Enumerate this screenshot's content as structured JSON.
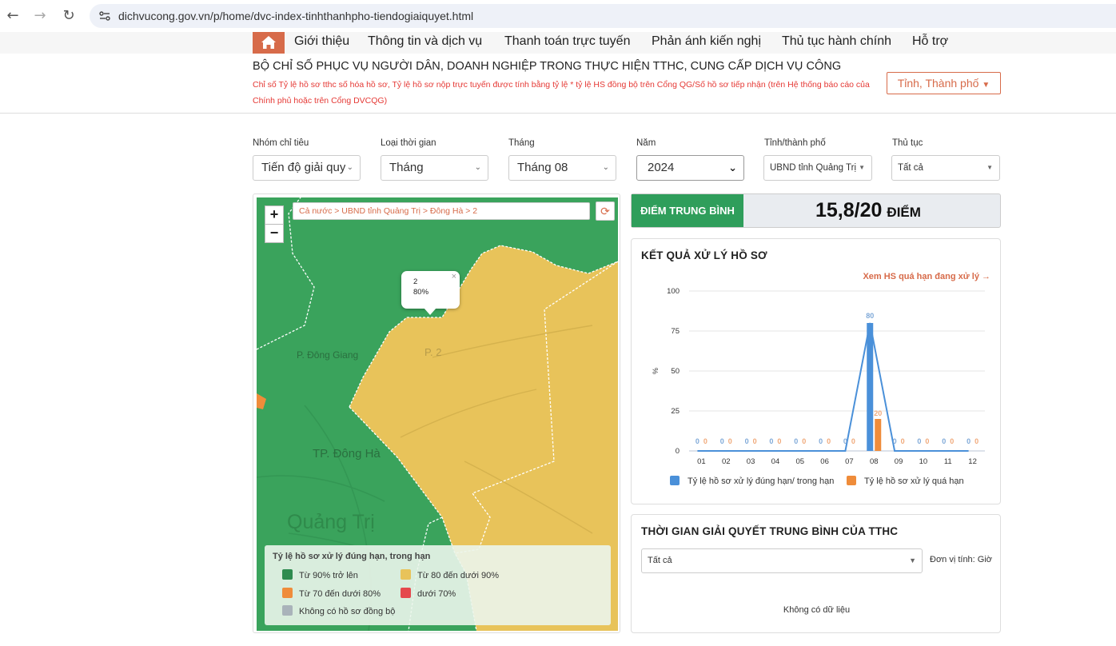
{
  "browser": {
    "url": "dichvucong.gov.vn/p/home/dvc-index-tinhthanhpho-tiendogiaiquyet.html",
    "back_icon": "arrow-left-icon",
    "forward_icon": "arrow-right-icon",
    "reload_icon": "reload-icon"
  },
  "nav": {
    "home_icon": "home-icon",
    "items": [
      "Giới thiệu",
      "Thông tin và dịch vụ",
      "Thanh toán trực tuyến",
      "Phản ánh kiến nghị",
      "Thủ tục hành chính",
      "Hỗ trợ"
    ]
  },
  "header": {
    "title": "BỘ CHỈ SỐ PHỤC VỤ NGƯỜI DÂN, DOANH NGHIỆP TRONG THỰC HIỆN TTHC, CUNG CẤP DỊCH VỤ CÔNG",
    "note": "Chỉ số Tỷ lệ hồ sơ tthc số hóa hồ sơ, Tỷ lệ hồ sơ nộp trực tuyến được tính bằng tỷ lệ * tỷ lệ HS đồng bộ trên Cổng QG/Số hồ sơ tiếp nhận (trên Hệ thống báo cáo của Chính phủ hoặc trên Cổng DVCQG)",
    "province_button": "Tỉnh, Thành phố"
  },
  "filters": [
    {
      "label": "Nhóm chỉ tiêu",
      "value": "Tiến độ giải quyết"
    },
    {
      "label": "Loại thời gian",
      "value": "Tháng"
    },
    {
      "label": "Tháng",
      "value": "Tháng 08"
    },
    {
      "label": "Năm",
      "value": "2024"
    },
    {
      "label": "Tỉnh/thành phố",
      "value": "UBND tỉnh Quảng Trị"
    },
    {
      "label": "Thủ tục",
      "value": "Tất cả"
    }
  ],
  "map": {
    "zoom_in": "+",
    "zoom_out": "−",
    "breadcrumb": "Cả nước > UBND tỉnh Quảng Trị > Đông Hà > 2",
    "refresh_icon": "refresh-icon",
    "popup": {
      "name": "2",
      "value": "80%",
      "close": "×"
    },
    "labels": {
      "p_dong_giang": "P. Đông Giang",
      "p2": "P. 2",
      "tp_dong_ha": "TP. Đông Hà",
      "quang_tri": "Quảng Trị"
    },
    "colors": {
      "green": "#3aa35c",
      "yellow": "#e8c35a",
      "orange": "#ef8c3a",
      "red": "#e5484d",
      "gray": "#a9b3ba"
    },
    "legend": {
      "title": "Tỷ lệ hồ sơ xử lý đúng hạn, trong hạn",
      "items": [
        {
          "label": "Từ 90% trở lên",
          "color": "#2e8b4f"
        },
        {
          "label": "Từ 80 đến dưới 90%",
          "color": "#e8c35a"
        },
        {
          "label": "Từ 70 đến dưới 80%",
          "color": "#ef8c3a"
        },
        {
          "label": "dưới 70%",
          "color": "#e5484d"
        },
        {
          "label": "Không có hồ sơ đồng bộ",
          "color": "#a9b3ba"
        }
      ]
    }
  },
  "score": {
    "label": "ĐIỂM TRUNG BÌNH",
    "value": "15,8/20",
    "unit": "ĐIỂM"
  },
  "result_panel": {
    "title": "KẾT QUẢ XỬ LÝ HỒ SƠ",
    "link": "Xem HS quá hạn đang xử lý →"
  },
  "chart_data": {
    "type": "bar",
    "categories": [
      "01",
      "02",
      "03",
      "04",
      "05",
      "06",
      "07",
      "08",
      "09",
      "10",
      "11",
      "12"
    ],
    "ylabel": "%",
    "ylim": [
      0,
      100
    ],
    "yticks": [
      0,
      25,
      50,
      75,
      100
    ],
    "grid": true,
    "legend_position": "bottom",
    "series": [
      {
        "name": "Tỷ lệ hồ sơ xử lý đúng hạn/ trong hạn",
        "color": "#4a90d9",
        "values": [
          0,
          0,
          0,
          0,
          0,
          0,
          0,
          80,
          0,
          0,
          0,
          0
        ]
      },
      {
        "name": "Tỷ lệ hồ sơ xử lý quá hạn",
        "color": "#ef8c3a",
        "values": [
          0,
          0,
          0,
          0,
          0,
          0,
          0,
          20,
          0,
          0,
          0,
          0
        ]
      }
    ]
  },
  "time_panel": {
    "title": "THỜI GIAN GIẢI QUYẾT TRUNG BÌNH CỦA TTHC",
    "select_value": "Tất cả",
    "unit": "Đơn vị tính: Giờ",
    "empty": "Không có dữ liệu"
  }
}
